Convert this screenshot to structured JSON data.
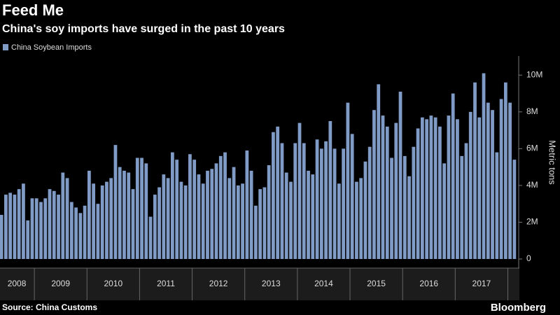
{
  "chart_data": {
    "type": "bar",
    "title": "Feed Me",
    "subtitle": "China's soy imports have surged in the past 10 years",
    "source": "Source: China Customs",
    "brand": "Bloomberg",
    "y_label": "Metric tons",
    "series": [
      {
        "name": "China Soybean Imports",
        "color": "#7f9bc6",
        "values": [
          2400000,
          3500000,
          3600000,
          3500000,
          3800000,
          4100000,
          2100000,
          3300000,
          3300000,
          3100000,
          3300000,
          3800000,
          3700000,
          3500000,
          4700000,
          4400000,
          3100000,
          2800000,
          2500000,
          2900000,
          4800000,
          4100000,
          3000000,
          4000000,
          4200000,
          4400000,
          6200000,
          5000000,
          4800000,
          4700000,
          3800000,
          5500000,
          5500000,
          5200000,
          2300000,
          3500000,
          3900000,
          4600000,
          4400000,
          5800000,
          5400000,
          4200000,
          4000000,
          5700000,
          5400000,
          4600000,
          4100000,
          4800000,
          4900000,
          5200000,
          5600000,
          5800000,
          4400000,
          5000000,
          4000000,
          4100000,
          5900000,
          4800000,
          2900000,
          3800000,
          3900000,
          5100000,
          6900000,
          7200000,
          6300000,
          4700000,
          4200000,
          6300000,
          7400000,
          6300000,
          4800000,
          4600000,
          6500000,
          6000000,
          6400000,
          7500000,
          6000000,
          4100000,
          6000000,
          8500000,
          6800000,
          4200000,
          4400000,
          5300000,
          6100000,
          8100000,
          9500000,
          7800000,
          7200000,
          5500000,
          7400000,
          9100000,
          5600000,
          4500000,
          6100000,
          7100000,
          7700000,
          7600000,
          7800000,
          7700000,
          7200000,
          5200000,
          7800000,
          9000000,
          7600000,
          5600000,
          6300000,
          8000000,
          9600000,
          7700000,
          10100000,
          8500000,
          8100000,
          5800000,
          8700000,
          9600000,
          8500000,
          5400000
        ]
      }
    ],
    "categories": [
      null,
      null,
      null,
      null,
      "2008",
      null,
      null,
      null,
      null,
      null,
      null,
      null,
      null,
      null,
      "2009",
      null,
      null,
      null,
      null,
      null,
      null,
      null,
      null,
      null,
      null,
      null,
      "2010",
      null,
      null,
      null,
      null,
      null,
      null,
      null,
      null,
      null,
      null,
      null,
      "2011",
      null,
      null,
      null,
      null,
      null,
      null,
      null,
      null,
      null,
      null,
      null,
      "2012",
      null,
      null,
      null,
      null,
      null,
      null,
      null,
      null,
      null,
      null,
      null,
      "2013",
      null,
      null,
      null,
      null,
      null,
      null,
      null,
      null,
      null,
      null,
      null,
      "2014",
      null,
      null,
      null,
      null,
      null,
      null,
      null,
      null,
      null,
      null,
      null,
      "2015",
      null,
      null,
      null,
      null,
      null,
      null,
      null,
      null,
      null,
      null,
      null,
      "2016",
      null,
      null,
      null,
      null,
      null,
      null,
      null,
      null,
      null,
      null,
      null,
      "2017",
      null,
      null,
      null,
      null,
      null,
      null,
      null
    ],
    "ylim": [
      0,
      11000000
    ],
    "yticks": [
      0,
      {
        "value": 2000000,
        "label": "2M"
      },
      {
        "value": 4000000,
        "label": "4M"
      },
      {
        "value": 6000000,
        "label": "6M"
      },
      {
        "value": 8000000,
        "label": "8M"
      },
      {
        "value": 10000000,
        "label": "10M"
      }
    ],
    "grid": false
  }
}
